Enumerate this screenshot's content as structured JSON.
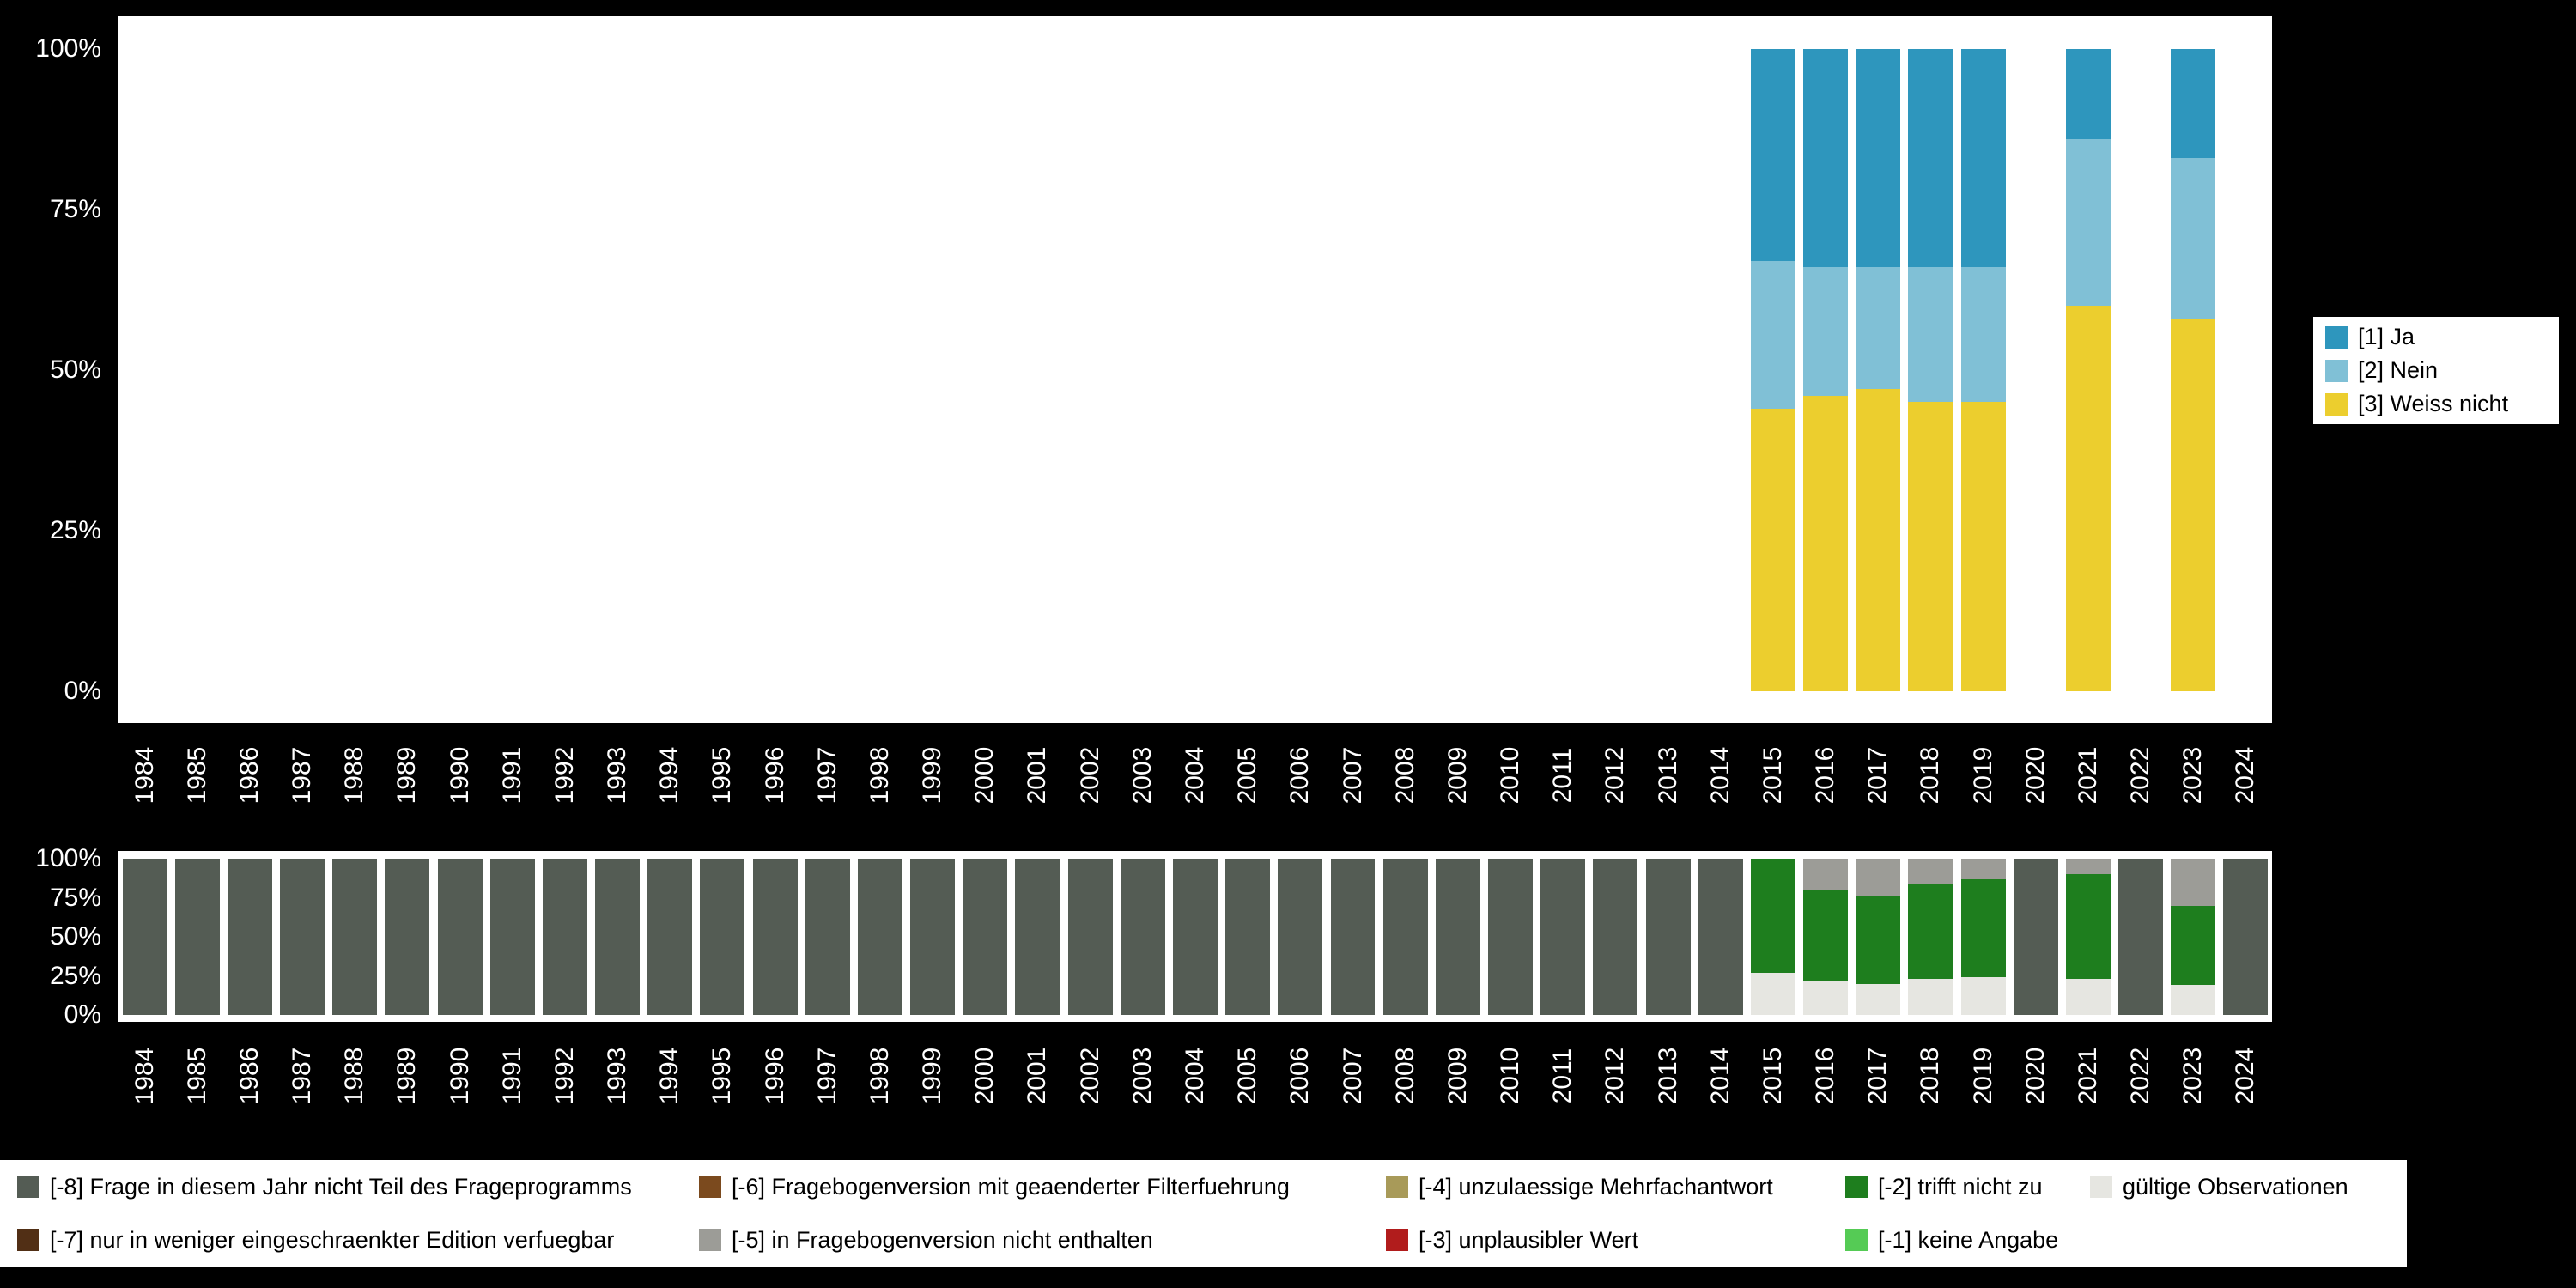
{
  "page": {
    "background": "#000000",
    "panel_background": "#ffffff"
  },
  "legend_top": {
    "items": [
      {
        "label": "[1] Ja",
        "color": "#2e96bd"
      },
      {
        "label": "[2] Nein",
        "color": "#80c0d6"
      },
      {
        "label": "[3] Weiss nicht",
        "color": "#ecce2e"
      }
    ]
  },
  "legend_missing": {
    "items": [
      {
        "label": "[-8] Frage in diesem Jahr nicht Teil des Frageprogramms",
        "color": "#545c54"
      },
      {
        "label": "[-7] nur in weniger eingeschraenkter Edition verfuegbar",
        "color": "#512f15"
      },
      {
        "label": "[-6] Fragebogenversion mit geaenderter Filterfuehrung",
        "color": "#7b4a1e"
      },
      {
        "label": "[-5] in Fragebogenversion nicht enthalten",
        "color": "#9c9c97"
      },
      {
        "label": "[-4] unzulaessige Mehrfachantwort",
        "color": "#a89a59"
      },
      {
        "label": "[-3] unplausibler Wert",
        "color": "#b11c1c"
      },
      {
        "label": "[-2] trifft nicht zu",
        "color": "#1e7e1e"
      },
      {
        "label": "[-1] keine Angabe",
        "color": "#55cb55"
      },
      {
        "label": "gültige Observationen",
        "color": "#e6e6e1"
      }
    ]
  },
  "chart_data": [
    {
      "name": "responses-percent",
      "type": "bar",
      "stacked": true,
      "title": "",
      "xlabel": "",
      "ylabel": "",
      "ylim": [
        0,
        100
      ],
      "grid": false,
      "legend_position": "right",
      "yticks": [
        {
          "label": "0%",
          "value": 0
        },
        {
          "label": "25%",
          "value": 25
        },
        {
          "label": "50%",
          "value": 50
        },
        {
          "label": "75%",
          "value": 75
        },
        {
          "label": "100%",
          "value": 100
        }
      ],
      "categories": [
        "1984",
        "1985",
        "1986",
        "1987",
        "1988",
        "1989",
        "1990",
        "1991",
        "1992",
        "1993",
        "1994",
        "1995",
        "1996",
        "1997",
        "1998",
        "1999",
        "2000",
        "2001",
        "2002",
        "2003",
        "2004",
        "2005",
        "2006",
        "2007",
        "2008",
        "2009",
        "2010",
        "2011",
        "2012",
        "2013",
        "2014",
        "2015",
        "2016",
        "2017",
        "2018",
        "2019",
        "2020",
        "2021",
        "2022",
        "2023",
        "2024"
      ],
      "series": [
        {
          "name": "[3] Weiss nicht",
          "color": "#ecce2e",
          "values_by_year": {
            "2015": 44,
            "2016": 46,
            "2017": 47,
            "2018": 45,
            "2019": 45,
            "2021": 60,
            "2023": 58
          }
        },
        {
          "name": "[2] Nein",
          "color": "#80c0d6",
          "values_by_year": {
            "2015": 23,
            "2016": 20,
            "2017": 19,
            "2018": 21,
            "2019": 21,
            "2021": 26,
            "2023": 25
          }
        },
        {
          "name": "[1] Ja",
          "color": "#2e96bd",
          "values_by_year": {
            "2015": 33,
            "2016": 34,
            "2017": 34,
            "2018": 34,
            "2019": 34,
            "2021": 14,
            "2023": 17
          }
        }
      ]
    },
    {
      "name": "missing-values-percent",
      "type": "bar",
      "stacked": true,
      "title": "",
      "xlabel": "",
      "ylabel": "",
      "ylim": [
        0,
        100
      ],
      "grid": false,
      "legend_position": "bottom",
      "yticks": [
        {
          "label": "0%",
          "value": 0
        },
        {
          "label": "25%",
          "value": 25
        },
        {
          "label": "50%",
          "value": 50
        },
        {
          "label": "75%",
          "value": 75
        },
        {
          "label": "100%",
          "value": 100
        }
      ],
      "categories": [
        "1984",
        "1985",
        "1986",
        "1987",
        "1988",
        "1989",
        "1990",
        "1991",
        "1992",
        "1993",
        "1994",
        "1995",
        "1996",
        "1997",
        "1998",
        "1999",
        "2000",
        "2001",
        "2002",
        "2003",
        "2004",
        "2005",
        "2006",
        "2007",
        "2008",
        "2009",
        "2010",
        "2011",
        "2012",
        "2013",
        "2014",
        "2015",
        "2016",
        "2017",
        "2018",
        "2019",
        "2020",
        "2021",
        "2022",
        "2023",
        "2024"
      ],
      "series": [
        {
          "name": "gültige Observationen",
          "color": "#e6e6e1",
          "values_by_year": {
            "2015": 27,
            "2016": 22,
            "2017": 20,
            "2018": 23,
            "2019": 24,
            "2021": 23,
            "2023": 19
          }
        },
        {
          "name": "[-2] trifft nicht zu",
          "color": "#1e7e1e",
          "values_by_year": {
            "2015": 73,
            "2016": 58,
            "2017": 56,
            "2018": 61,
            "2019": 63,
            "2021": 67,
            "2023": 51
          }
        },
        {
          "name": "[-5] in Fragebogenversion nicht enthalten",
          "color": "#9c9c97",
          "values_by_year": {
            "2016": 20,
            "2017": 24,
            "2018": 16,
            "2019": 13,
            "2021": 10,
            "2023": 30
          }
        },
        {
          "name": "[-8] Frage in diesem Jahr nicht Teil des Frageprogramms",
          "color": "#545c54",
          "values_by_year": {
            "1984": 100,
            "1985": 100,
            "1986": 100,
            "1987": 100,
            "1988": 100,
            "1989": 100,
            "1990": 100,
            "1991": 100,
            "1992": 100,
            "1993": 100,
            "1994": 100,
            "1995": 100,
            "1996": 100,
            "1997": 100,
            "1998": 100,
            "1999": 100,
            "2000": 100,
            "2001": 100,
            "2002": 100,
            "2003": 100,
            "2004": 100,
            "2005": 100,
            "2006": 100,
            "2007": 100,
            "2008": 100,
            "2009": 100,
            "2010": 100,
            "2011": 100,
            "2012": 100,
            "2013": 100,
            "2014": 100,
            "2020": 100,
            "2022": 100,
            "2024": 100
          }
        }
      ]
    }
  ]
}
